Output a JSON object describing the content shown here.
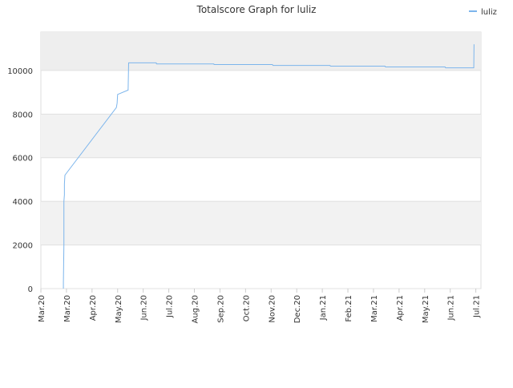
{
  "chart_data": {
    "type": "line",
    "title": "Totalscore Graph for luliz",
    "series": [
      {
        "name": "luliz",
        "color": "#7cb5ec",
        "x": [
          0.88,
          0.88,
          0.9,
          0.9,
          0.92,
          0.92,
          0.94,
          2.95,
          2.98,
          3.0,
          3.41,
          3.43,
          4.51,
          4.52,
          6.76,
          6.77,
          9.05,
          9.07,
          11.3,
          11.32,
          13.45,
          13.47,
          15.8,
          15.82,
          16.92,
          16.93
        ],
        "values": [
          0,
          300,
          2000,
          4000,
          4300,
          4800,
          5200,
          8300,
          8500,
          8900,
          9100,
          10350,
          10350,
          10300,
          10300,
          10270,
          10270,
          10230,
          10230,
          10200,
          10200,
          10160,
          10160,
          10120,
          10120,
          11200
        ]
      }
    ],
    "xlim": [
      0,
      17.2
    ],
    "xticks": [
      {
        "value": 0,
        "label": "Mar.20"
      },
      {
        "value": 1,
        "label": "Mar.20"
      },
      {
        "value": 2,
        "label": "Apr.20"
      },
      {
        "value": 3,
        "label": "May.20"
      },
      {
        "value": 4,
        "label": "Jun.20"
      },
      {
        "value": 5,
        "label": "Jul.20"
      },
      {
        "value": 6,
        "label": "Aug.20"
      },
      {
        "value": 7,
        "label": "Sep.20"
      },
      {
        "value": 8,
        "label": "Oct.20"
      },
      {
        "value": 9,
        "label": "Nov.20"
      },
      {
        "value": 10,
        "label": "Dec.20"
      },
      {
        "value": 11,
        "label": "Jan.21"
      },
      {
        "value": 12,
        "label": "Feb.21"
      },
      {
        "value": 13,
        "label": "Mar.21"
      },
      {
        "value": 14,
        "label": "Apr.21"
      },
      {
        "value": 15,
        "label": "May.21"
      },
      {
        "value": 16,
        "label": "Jun.21"
      },
      {
        "value": 17,
        "label": "Jul.21"
      }
    ],
    "ylim": [
      0,
      11760
    ],
    "yticks": [
      0,
      2000,
      4000,
      6000,
      8000,
      10000
    ],
    "bands": true,
    "legend": "top-right"
  }
}
